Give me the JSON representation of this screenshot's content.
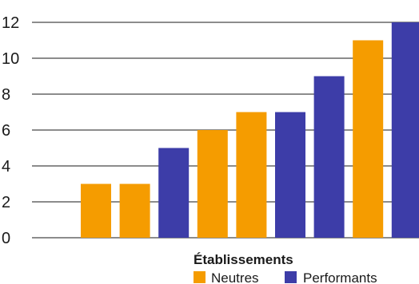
{
  "chart_data": {
    "type": "bar",
    "categories": [
      "",
      "",
      "",
      "",
      "",
      "",
      "",
      "",
      ""
    ],
    "values": [
      3,
      3,
      5,
      6,
      7,
      7,
      9,
      11,
      12
    ],
    "bar_series": [
      "Neutres",
      "Neutres",
      "Performants",
      "Neutres",
      "Neutres",
      "Performants",
      "Performants",
      "Neutres",
      "Performants"
    ],
    "series": [
      {
        "name": "Neutres",
        "color": "#F59C00"
      },
      {
        "name": "Performants",
        "color": "#3D3DA8"
      }
    ],
    "ylim": [
      0,
      12
    ],
    "yticks": [
      "0",
      "2",
      "4",
      "6",
      "8",
      "10",
      "12"
    ],
    "grid": true,
    "legend": {
      "title": "Établissements",
      "placement": "bottom"
    },
    "title": "",
    "xlabel": "",
    "ylabel": ""
  }
}
